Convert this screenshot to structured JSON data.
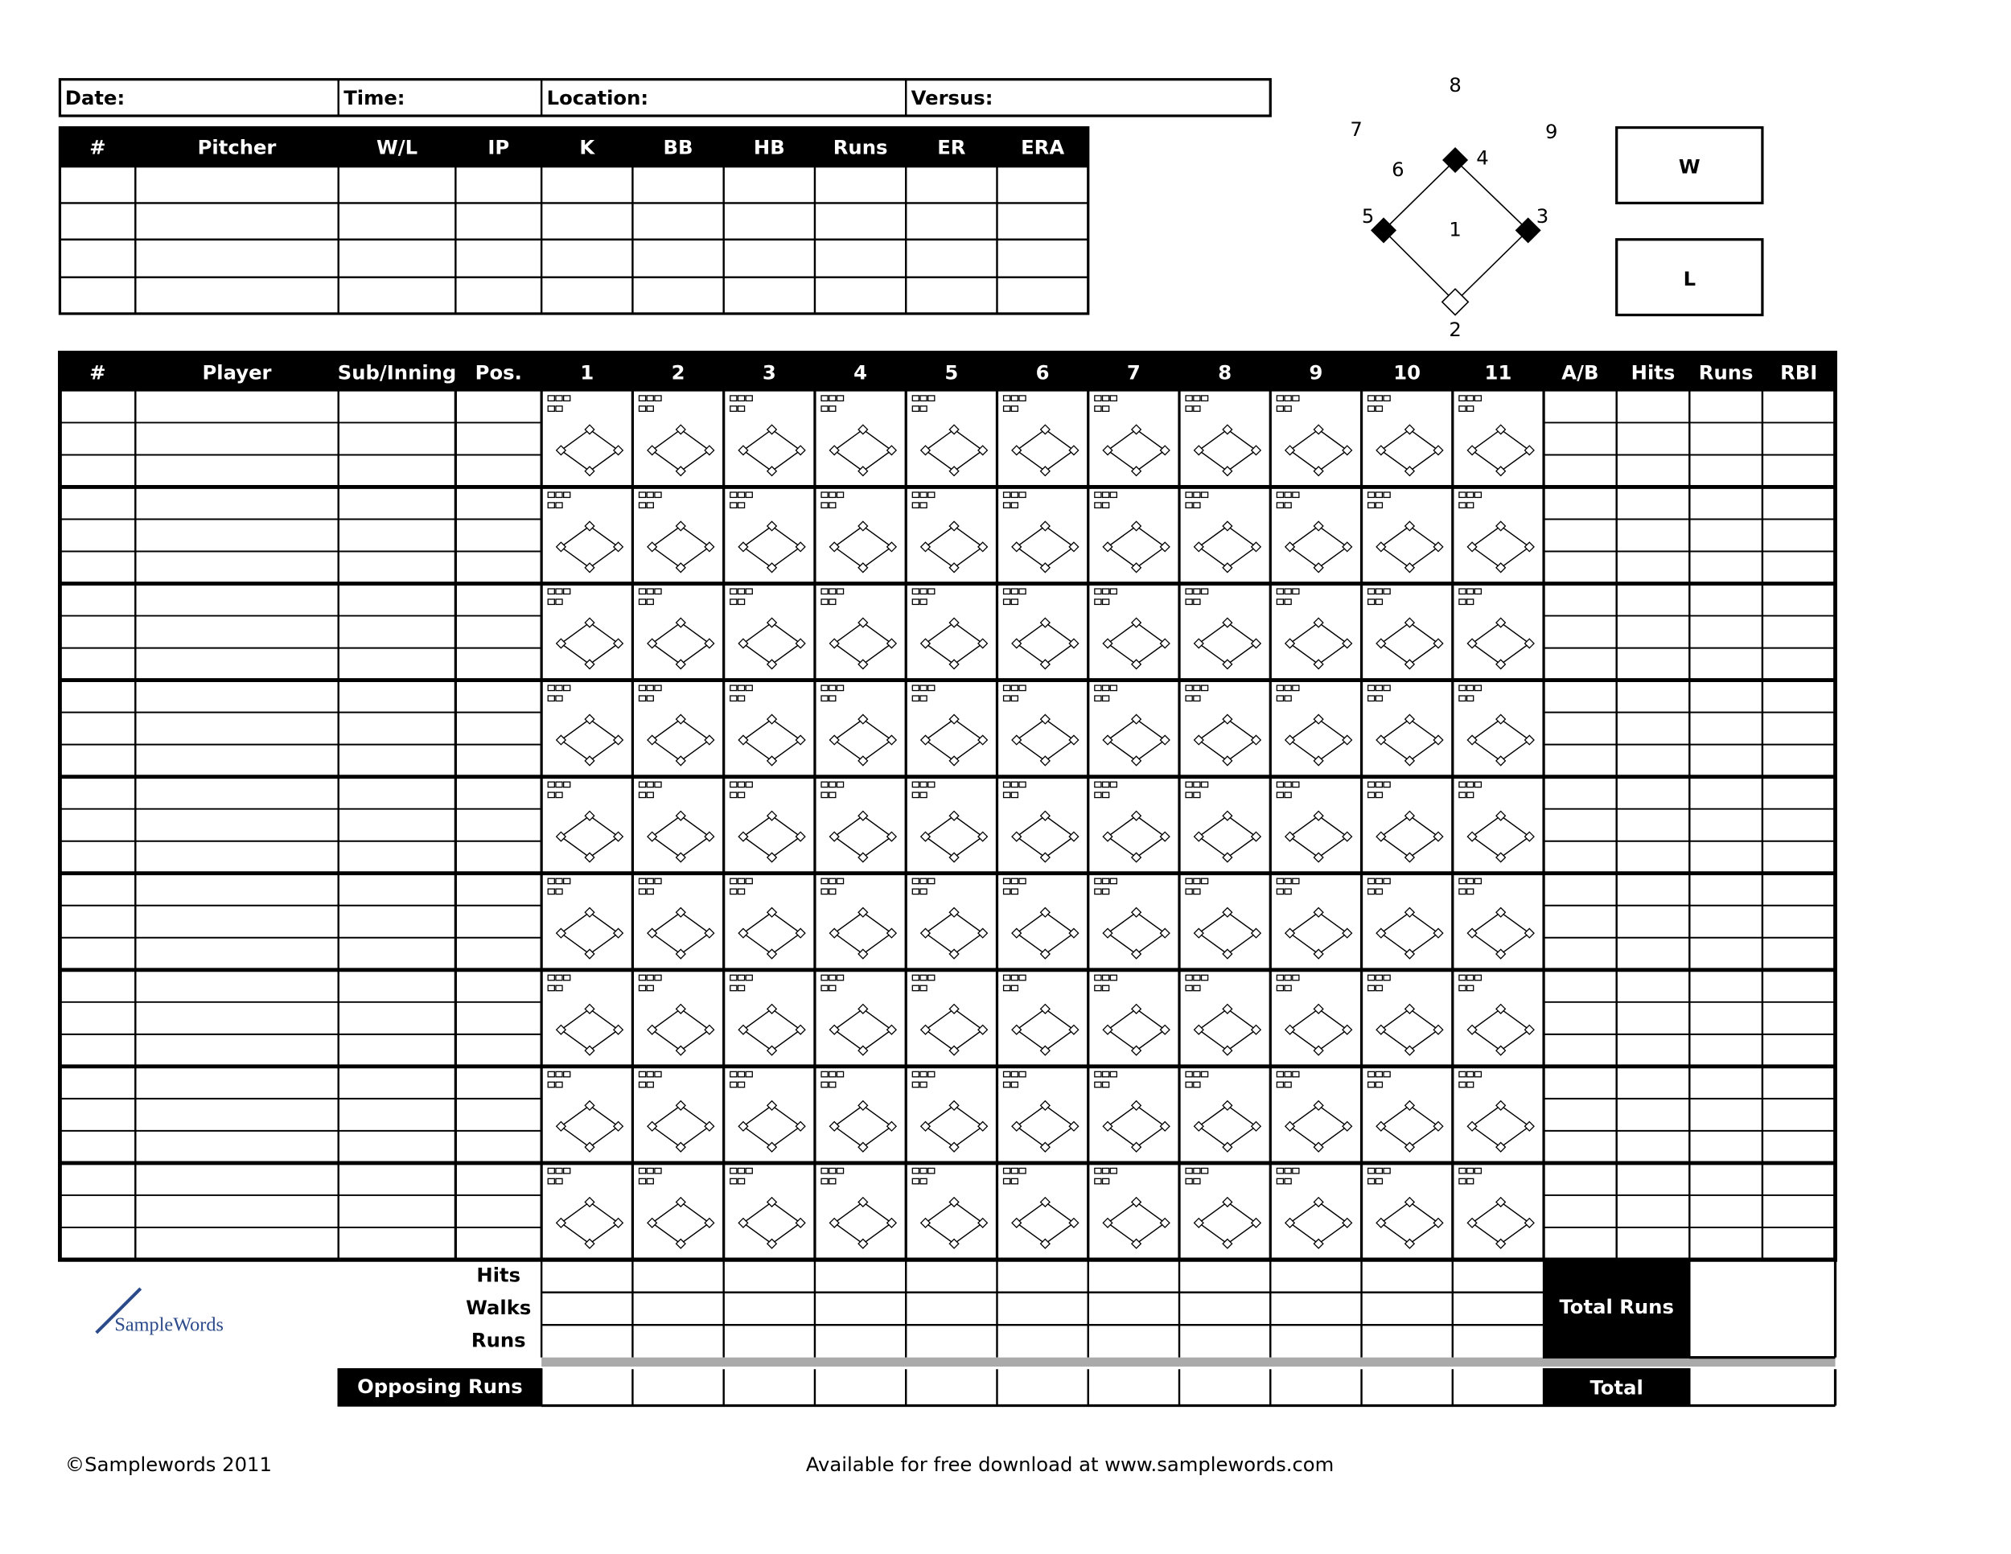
{
  "header_fields": [
    "Date:",
    "Time:",
    "Location:",
    "Versus:"
  ],
  "pitching": {
    "columns": [
      "#",
      "Pitcher",
      "W/L",
      "IP",
      "K",
      "BB",
      "HB",
      "Runs",
      "ER",
      "ERA"
    ]
  },
  "diamond": {
    "positions": [
      "1",
      "2",
      "3",
      "4",
      "5",
      "6",
      "7",
      "8",
      "9"
    ]
  },
  "result": [
    "W",
    "L"
  ],
  "batting": {
    "columns": [
      "#",
      "Player",
      "Sub/Inning",
      "Pos.",
      "1",
      "2",
      "3",
      "4",
      "5",
      "6",
      "7",
      "8",
      "9",
      "10",
      "11",
      "A/B",
      "Hits",
      "Runs",
      "RBI"
    ]
  },
  "totals": {
    "row_labels": [
      "Hits",
      "Walks",
      "Runs"
    ],
    "opposing": "Opposing Runs",
    "total_runs": "Total Runs",
    "total": "Total"
  },
  "logo": "SampleWords",
  "footer": {
    "copyright": "©Samplewords 2011",
    "download": "Available for free download at www.samplewords.com"
  }
}
